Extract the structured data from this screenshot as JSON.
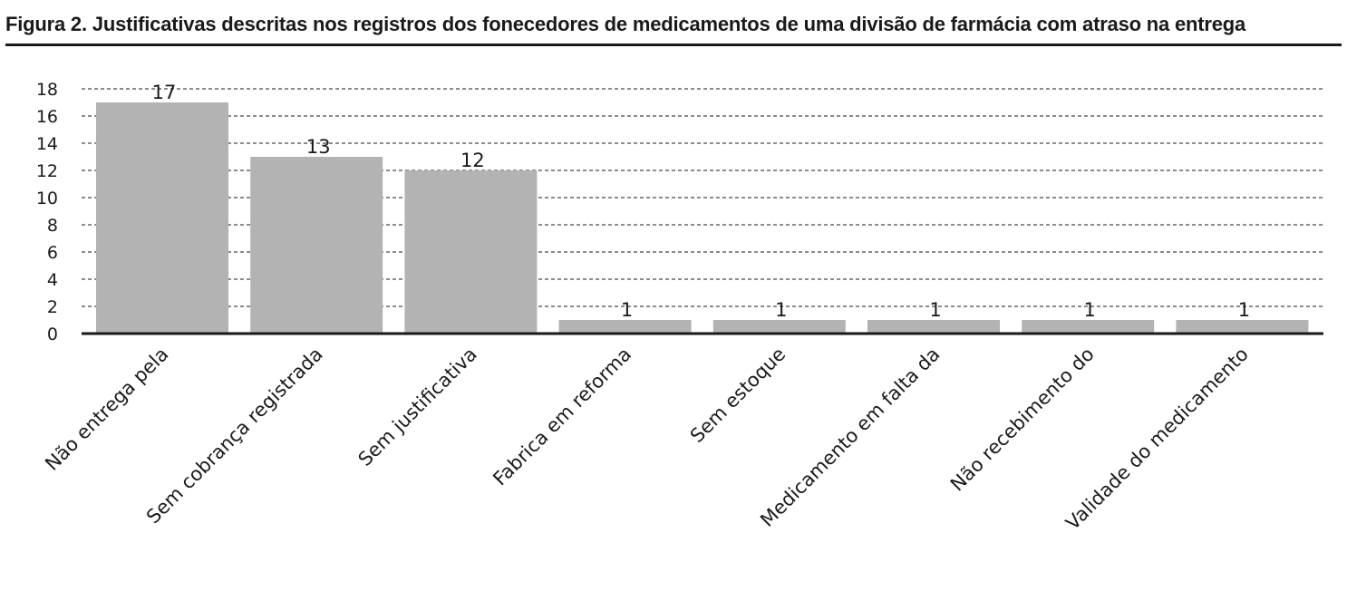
{
  "chart_data": {
    "type": "bar",
    "title": "Figura 2. Justificativas descritas nos registros dos fonecedores de medicamentos de uma divisão de farmácia com atraso na entrega",
    "categories": [
      "Não entrega pela",
      "Sem cobrança registrada",
      "Sem justificativa",
      "Fabrica em reforma",
      "Sem estoque",
      "Medicamento em falta da",
      "Não recebimento do",
      "Validade do medicamento"
    ],
    "values": [
      17,
      13,
      12,
      1,
      1,
      1,
      1,
      1
    ],
    "data_labels": [
      "17",
      "13",
      "12",
      "1",
      "1",
      "1",
      "1",
      "1"
    ],
    "yticks": [
      "0",
      "2",
      "4",
      "6",
      "8",
      "10",
      "12",
      "14",
      "16",
      "18"
    ],
    "ylim": [
      0,
      18
    ],
    "grid": true,
    "grid_style": "dashed",
    "legend": "none",
    "bar_color": "#b3b3b3"
  }
}
